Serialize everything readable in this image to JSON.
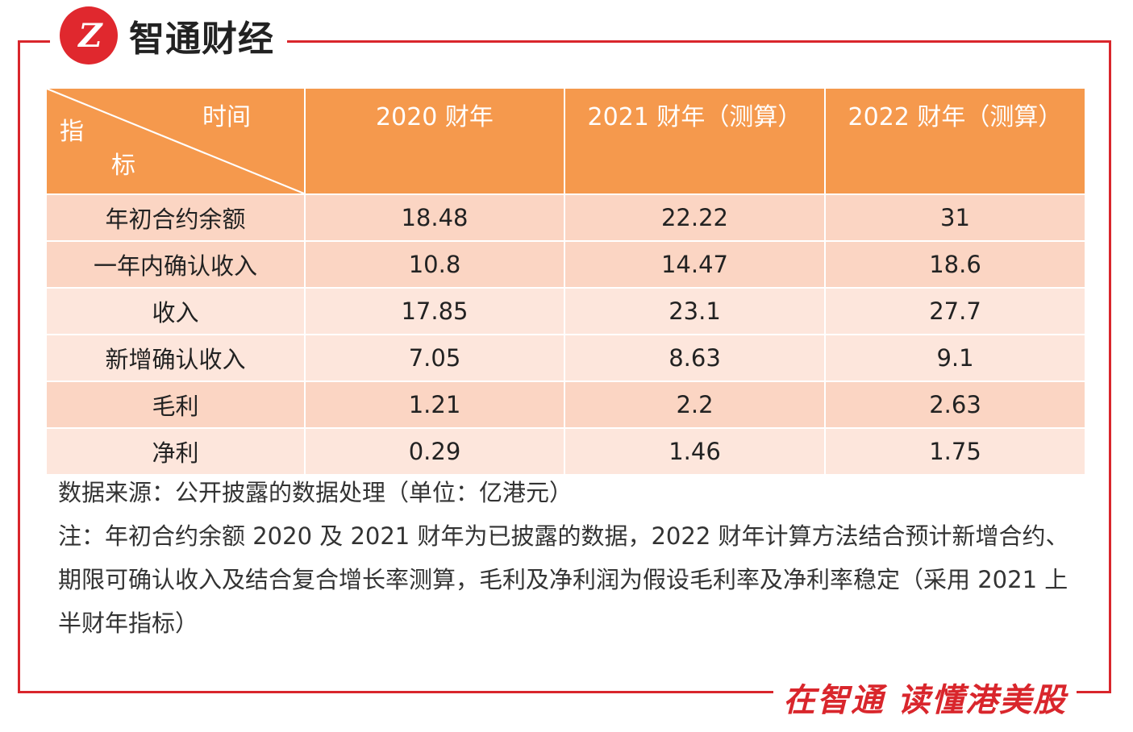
{
  "brand": {
    "logo_mark": "Z",
    "name": "智通财经"
  },
  "table": {
    "corner": {
      "time": "时间",
      "indicator_1": "指",
      "indicator_2": "标"
    },
    "headers": [
      "2020 财年",
      "2021 财年（测算）",
      "2022 财年（测算）"
    ],
    "rows": [
      {
        "label": "年初合约余额",
        "values": [
          "18.48",
          "22.22",
          "31"
        ]
      },
      {
        "label": "一年内确认收入",
        "values": [
          "10.8",
          "14.47",
          "18.6"
        ]
      },
      {
        "label": "收入",
        "values": [
          "17.85",
          "23.1",
          "27.7"
        ]
      },
      {
        "label": "新增确认收入",
        "values": [
          "7.05",
          "8.63",
          "9.1"
        ]
      },
      {
        "label": "毛利",
        "values": [
          "1.21",
          "2.2",
          "2.63"
        ]
      },
      {
        "label": "净利",
        "values": [
          "0.29",
          "1.46",
          "1.75"
        ]
      }
    ]
  },
  "notes": {
    "source": "数据来源：公开披露的数据处理（单位：亿港元）",
    "note": "注：年初合约余额 2020 及 2021 财年为已披露的数据，2022 财年计算方法结合预计新增合约、期限可确认收入及结合复合增长率测算，毛利及净利润为假设毛利率及净利率稳定（采用 2021 上半财年指标）"
  },
  "footer": {
    "slogan": "在智通  读懂港美股"
  },
  "colors": {
    "brand_red": "#d9262c",
    "header_orange": "#f5994d",
    "row_dark": "#fbd5c3",
    "row_light": "#fde6dc"
  }
}
